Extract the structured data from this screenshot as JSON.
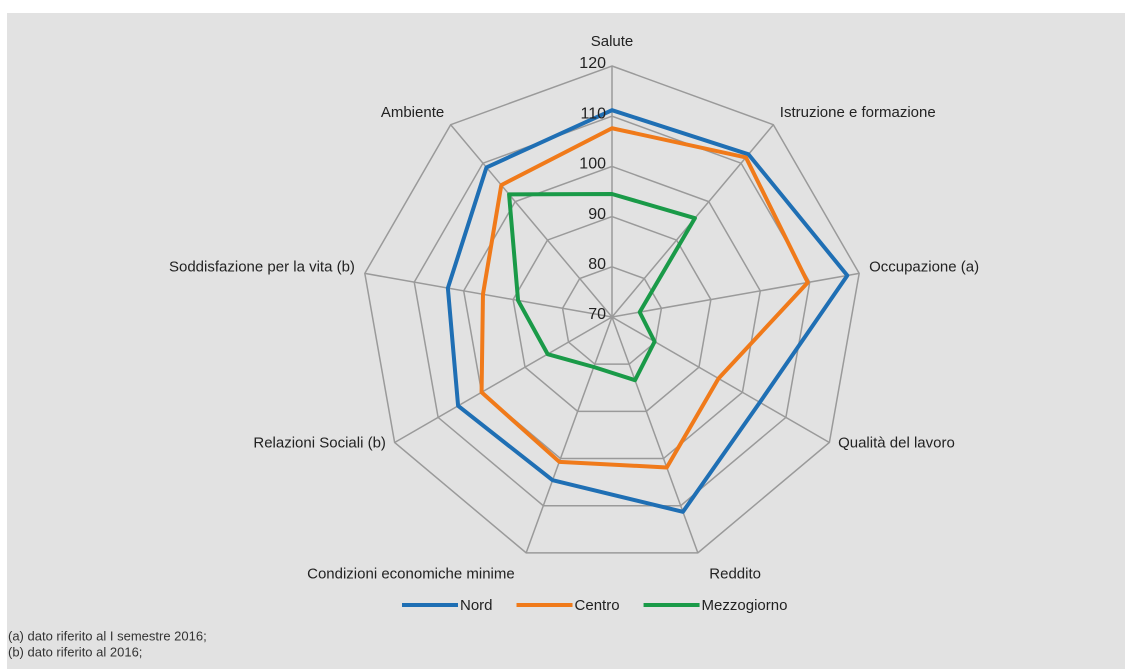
{
  "chart_data": {
    "type": "radar",
    "categories": [
      "Salute",
      "Istruzione e formazione",
      "Occupazione (a)",
      "Qualità del lavoro",
      "Reddito",
      "Condizioni economiche minime",
      "Relazioni Sociali (b)",
      "Soddisfazione per la vita (b)",
      "Ambiente"
    ],
    "series": [
      {
        "name": "Nord",
        "color": "#1f6fb4",
        "values": [
          111.2,
          112.3,
          117.6,
          104,
          111.3,
          104.6,
          105.4,
          103.2,
          108.9
        ]
      },
      {
        "name": "Centro",
        "color": "#f07a1a",
        "values": [
          107.6,
          111.5,
          109.6,
          94.5,
          101.9,
          100.7,
          100,
          96.1,
          104.3
        ]
      },
      {
        "name": "Mezzogiorno",
        "color": "#1a9a48",
        "values": [
          94.5,
          95.7,
          75.6,
          79.8,
          83.4,
          80.6,
          84.8,
          89,
          101.9
        ]
      }
    ],
    "ylim": [
      70,
      120
    ],
    "yticks": [
      70,
      80,
      90,
      100,
      110,
      120
    ],
    "grid": true,
    "legend": "bottom",
    "notes": [
      "(a) dato riferito al I semestre 2016;",
      "(b) dato riferito al 2016;"
    ]
  }
}
